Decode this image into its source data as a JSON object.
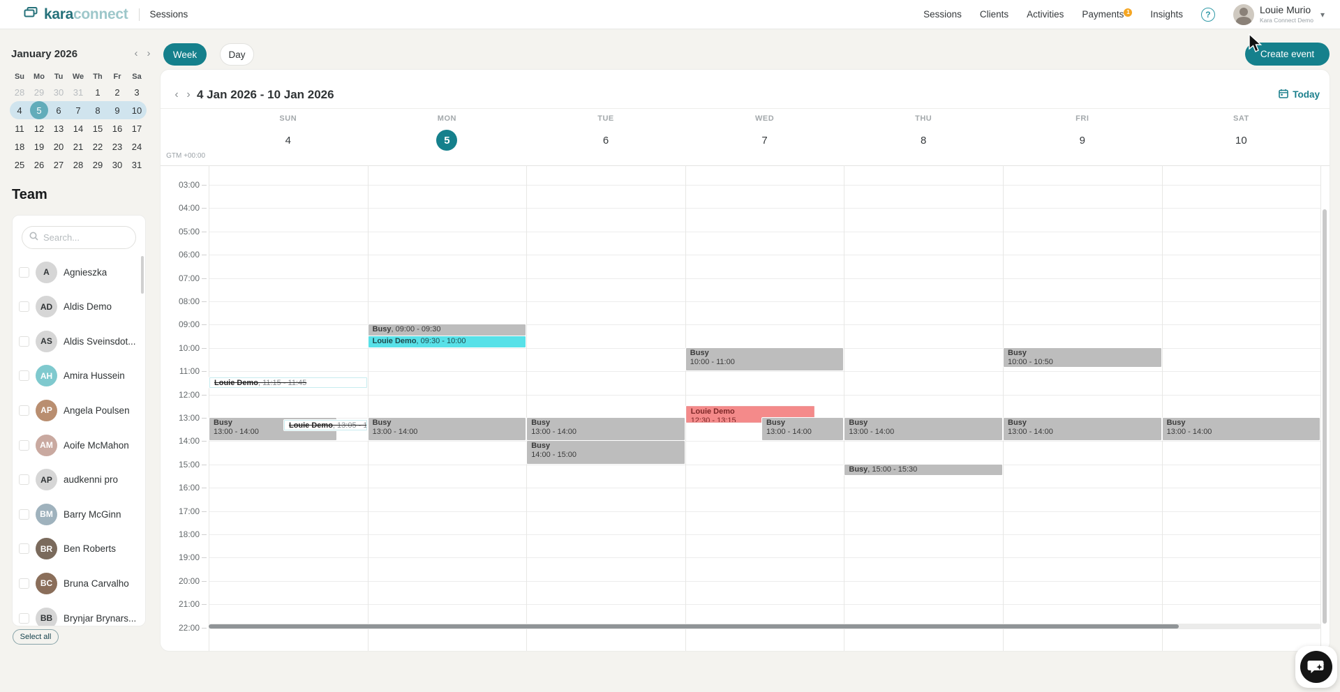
{
  "brand": {
    "logo_primary": "kara",
    "logo_secondary": "connect",
    "page_title": "Sessions"
  },
  "nav": {
    "items": [
      {
        "label": "Sessions"
      },
      {
        "label": "Clients"
      },
      {
        "label": "Activities"
      },
      {
        "label": "Payments",
        "badge": "1"
      },
      {
        "label": "Insights"
      }
    ]
  },
  "user": {
    "name": "Louie Murio",
    "org": "Kara Connect Demo"
  },
  "controls": {
    "week": "Week",
    "day": "Day",
    "create_event": "Create event",
    "today": "Today",
    "select_all": "Select all"
  },
  "mini_calendar": {
    "title": "January 2026",
    "day_headers": [
      "Su",
      "Mo",
      "Tu",
      "We",
      "Th",
      "Fr",
      "Sa"
    ],
    "weeks": [
      [
        "28",
        "29",
        "30",
        "31",
        "1",
        "2",
        "3"
      ],
      [
        "4",
        "5",
        "6",
        "7",
        "8",
        "9",
        "10"
      ],
      [
        "11",
        "12",
        "13",
        "14",
        "15",
        "16",
        "17"
      ],
      [
        "18",
        "19",
        "20",
        "21",
        "22",
        "23",
        "24"
      ],
      [
        "25",
        "26",
        "27",
        "28",
        "29",
        "30",
        "31"
      ]
    ],
    "muted_leading_cells_in_first_week": 4,
    "highlighted_week_row": 1,
    "selected_day": "5"
  },
  "team": {
    "heading": "Team",
    "search_placeholder": "Search...",
    "members": [
      {
        "name": "Agnieszka",
        "initials": "A",
        "avatar": "initials"
      },
      {
        "name": "Aldis Demo",
        "initials": "AD",
        "avatar": "initials"
      },
      {
        "name": "Aldis Sveinsdot...",
        "initials": "AS",
        "avatar": "initials"
      },
      {
        "name": "Amira Hussein",
        "initials": "AH",
        "avatar": "photo",
        "color": "#7fc9ce"
      },
      {
        "name": "Angela Poulsen",
        "initials": "AP",
        "avatar": "photo",
        "color": "#b98e70"
      },
      {
        "name": "Aoife McMahon",
        "initials": "AM",
        "avatar": "photo",
        "color": "#c9a9a0"
      },
      {
        "name": "audkenni pro",
        "initials": "AP",
        "avatar": "initials"
      },
      {
        "name": "Barry McGinn",
        "initials": "BM",
        "avatar": "photo",
        "color": "#9fb2bd"
      },
      {
        "name": "Ben Roberts",
        "initials": "BR",
        "avatar": "photo",
        "color": "#7a6a5c"
      },
      {
        "name": "Bruna Carvalho",
        "initials": "BC",
        "avatar": "photo",
        "color": "#8a6e5a"
      },
      {
        "name": "Brynjar Brynars...",
        "initials": "BB",
        "avatar": "initials"
      }
    ]
  },
  "calendar": {
    "range_label": "4 Jan 2026 - 10 Jan 2026",
    "timezone_label": "GTM +00:00",
    "days": [
      {
        "name": "SUN",
        "date": "4"
      },
      {
        "name": "MON",
        "date": "5",
        "selected": true
      },
      {
        "name": "TUE",
        "date": "6"
      },
      {
        "name": "WED",
        "date": "7"
      },
      {
        "name": "THU",
        "date": "8"
      },
      {
        "name": "FRI",
        "date": "9"
      },
      {
        "name": "SAT",
        "date": "10"
      }
    ],
    "hours": [
      "03:00",
      "04:00",
      "05:00",
      "06:00",
      "07:00",
      "08:00",
      "09:00",
      "10:00",
      "11:00",
      "12:00",
      "13:00",
      "14:00",
      "15:00",
      "16:00",
      "17:00",
      "18:00",
      "19:00",
      "20:00",
      "21:00",
      "22:00"
    ],
    "events": [
      {
        "day": 0,
        "title": "Louie Demo",
        "time": "11:15 - 11:45",
        "start": "11:15",
        "end": "11:45",
        "type": "cancelled",
        "layout": "inline",
        "left_pct": 0,
        "width_pct": 100
      },
      {
        "day": 0,
        "title": "Busy",
        "time": "13:00 - 14:00",
        "start": "13:00",
        "end": "14:00",
        "type": "busy",
        "layout": "stacked",
        "left_pct": 0,
        "width_pct": 81
      },
      {
        "day": 0,
        "title": "Louie Demo",
        "time": "13:05 - 1",
        "start": "13:05",
        "end": "13:35",
        "type": "cancelled",
        "layout": "inline",
        "left_pct": 47,
        "width_pct": 53
      },
      {
        "day": 1,
        "title": "Busy",
        "time": "09:00 - 09:30",
        "start": "09:00",
        "end": "09:30",
        "type": "busy",
        "layout": "inline",
        "left_pct": 0,
        "width_pct": 100
      },
      {
        "day": 1,
        "title": "Louie Demo",
        "time": "09:30 - 10:00",
        "start": "09:30",
        "end": "10:00",
        "type": "session",
        "layout": "inline",
        "left_pct": 0,
        "width_pct": 100
      },
      {
        "day": 1,
        "title": "Busy",
        "time": "13:00 - 14:00",
        "start": "13:00",
        "end": "14:00",
        "type": "busy",
        "layout": "stacked",
        "left_pct": 0,
        "width_pct": 100
      },
      {
        "day": 2,
        "title": "Busy",
        "time": "13:00 - 14:00",
        "start": "13:00",
        "end": "14:00",
        "type": "busy",
        "layout": "stacked",
        "left_pct": 0,
        "width_pct": 100
      },
      {
        "day": 2,
        "title": "Busy",
        "time": "14:00 - 15:00",
        "start": "14:00",
        "end": "15:00",
        "type": "busy",
        "layout": "stacked",
        "left_pct": 0,
        "width_pct": 100
      },
      {
        "day": 3,
        "title": "Busy",
        "time": "10:00 - 11:00",
        "start": "10:00",
        "end": "11:00",
        "type": "busy",
        "layout": "stacked",
        "left_pct": 0,
        "width_pct": 100
      },
      {
        "day": 3,
        "title": "Louie Demo",
        "time": "12:30 - 13:15",
        "start": "12:30",
        "end": "13:15",
        "type": "declined",
        "layout": "stacked",
        "left_pct": 0,
        "width_pct": 82
      },
      {
        "day": 3,
        "title": "Busy",
        "time": "13:00 - 14:00",
        "start": "13:00",
        "end": "14:00",
        "type": "busy",
        "layout": "stacked",
        "left_pct": 48,
        "width_pct": 52
      },
      {
        "day": 4,
        "title": "Busy",
        "time": "13:00 - 14:00",
        "start": "13:00",
        "end": "14:00",
        "type": "busy",
        "layout": "stacked",
        "left_pct": 0,
        "width_pct": 100
      },
      {
        "day": 4,
        "title": "Busy",
        "time": "15:00 - 15:30",
        "start": "15:00",
        "end": "15:30",
        "type": "busy",
        "layout": "inline",
        "left_pct": 0,
        "width_pct": 100
      },
      {
        "day": 5,
        "title": "Busy",
        "time": "10:00 - 10:50",
        "start": "10:00",
        "end": "10:50",
        "type": "busy",
        "layout": "stacked",
        "left_pct": 0,
        "width_pct": 100
      },
      {
        "day": 5,
        "title": "Busy",
        "time": "13:00 - 14:00",
        "start": "13:00",
        "end": "14:00",
        "type": "busy",
        "layout": "stacked",
        "left_pct": 0,
        "width_pct": 100
      },
      {
        "day": 6,
        "title": "Busy",
        "time": "13:00 - 14:00",
        "start": "13:00",
        "end": "14:00",
        "type": "busy",
        "layout": "stacked",
        "left_pct": 0,
        "width_pct": 100
      }
    ]
  },
  "colors": {
    "primary_teal": "#15808c",
    "mini_highlight": "#d0e4ee",
    "mini_selected": "#62acba",
    "busy_gray": "#bdbdbd",
    "session_cyan": "#58e1e8",
    "declined_red": "#f48a8a",
    "cancelled_border": "#c7ecef",
    "badge_orange": "#f5a623"
  }
}
